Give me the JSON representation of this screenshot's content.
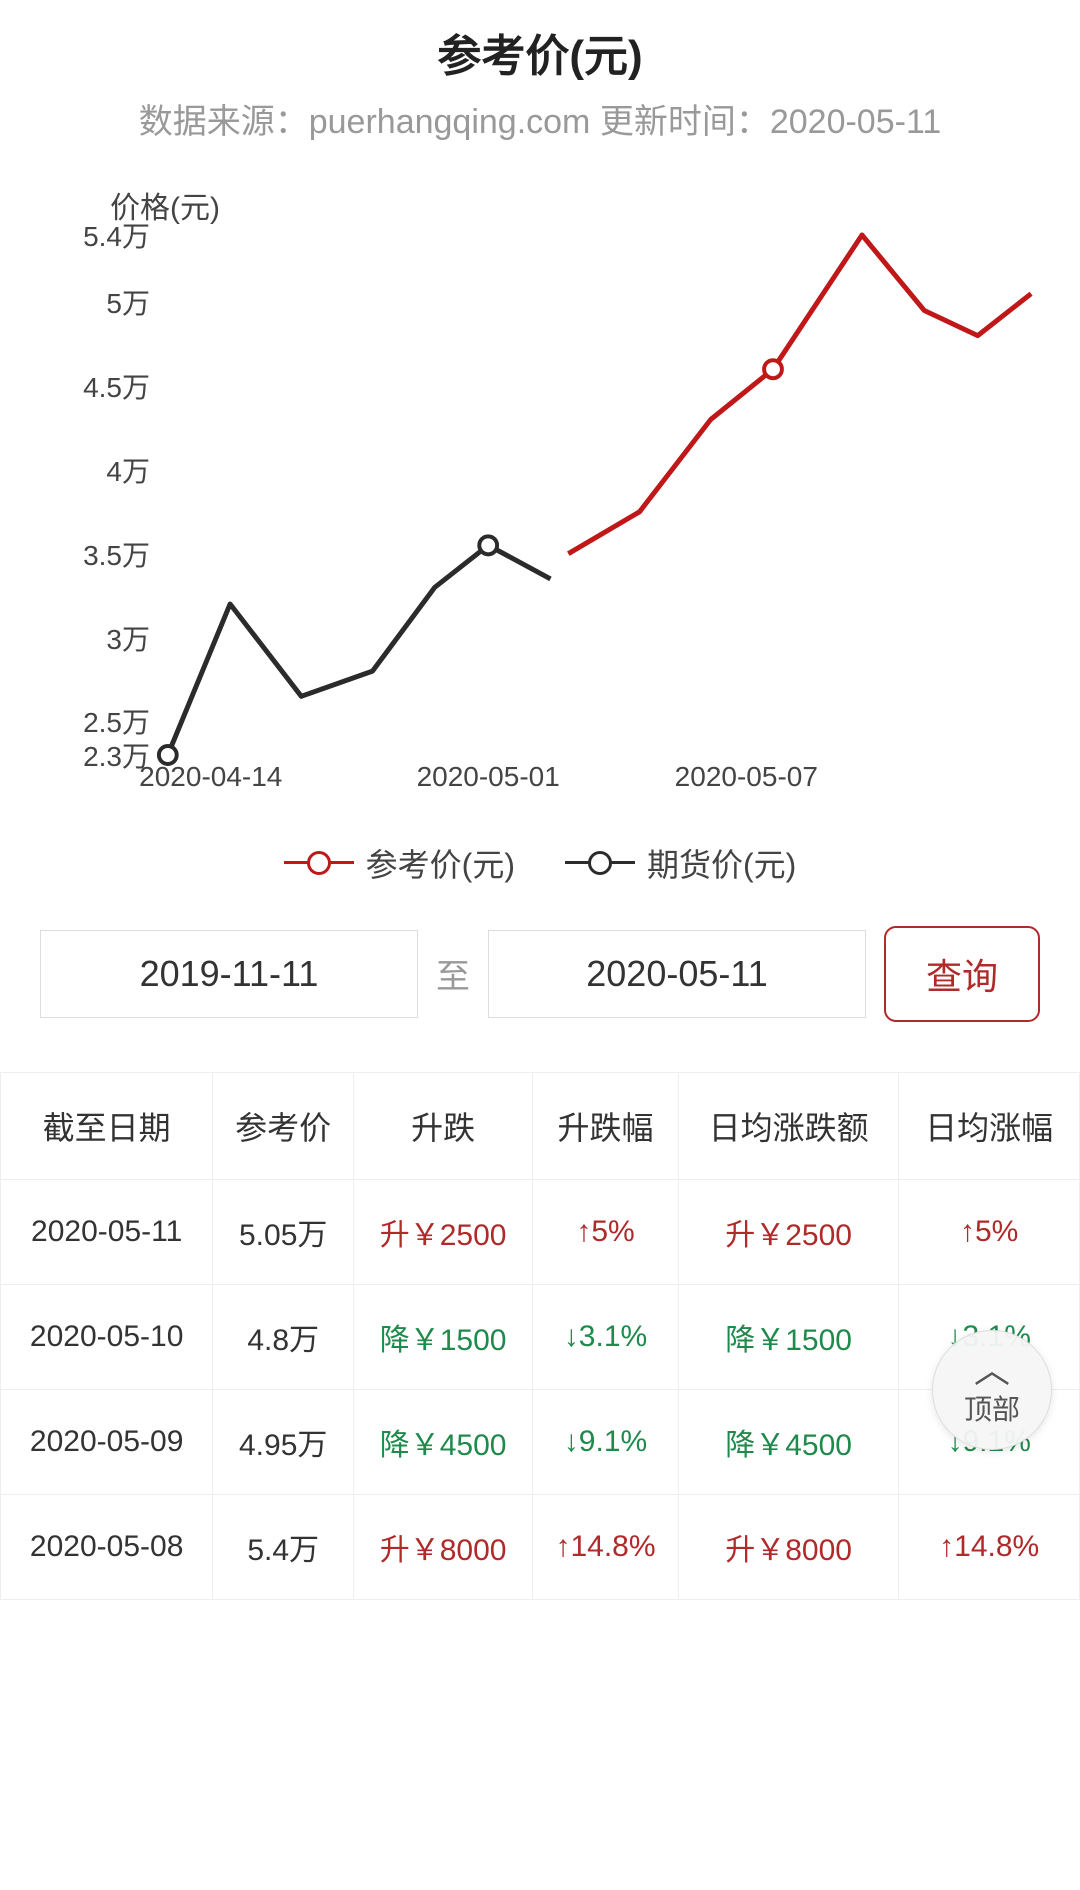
{
  "header": {
    "title": "参考价(元)",
    "source_prefix": "数据来源：",
    "source": "puerhangqing.com",
    "update_prefix": " 更新时间：",
    "update_date": "2020-05-11"
  },
  "chart": {
    "type": "line",
    "y_label": "价格(元)",
    "y_min": 2.3,
    "y_max": 5.4,
    "y_ticks": [
      {
        "v": 5.4,
        "label": "5.4万"
      },
      {
        "v": 5.0,
        "label": "5万"
      },
      {
        "v": 4.5,
        "label": "4.5万"
      },
      {
        "v": 4.0,
        "label": "4万"
      },
      {
        "v": 3.5,
        "label": "3.5万"
      },
      {
        "v": 3.0,
        "label": "3万"
      },
      {
        "v": 2.5,
        "label": "2.5万"
      },
      {
        "v": 2.3,
        "label": "2.3万"
      }
    ],
    "x_ticks": [
      {
        "px": 0.02,
        "label": "2020-04-14"
      },
      {
        "px": 0.38,
        "label": "2020-05-01"
      },
      {
        "px": 0.67,
        "label": "2020-05-07"
      }
    ],
    "series": [
      {
        "name": "期货价(元)",
        "color": "#2b2b2b",
        "points": [
          {
            "x": 0.02,
            "y": 2.3
          },
          {
            "x": 0.09,
            "y": 3.2
          },
          {
            "x": 0.17,
            "y": 2.65
          },
          {
            "x": 0.25,
            "y": 2.8
          },
          {
            "x": 0.32,
            "y": 3.3
          },
          {
            "x": 0.38,
            "y": 3.55
          },
          {
            "x": 0.45,
            "y": 3.35
          }
        ],
        "markers_at": [
          0,
          5
        ]
      },
      {
        "name": "参考价(元)",
        "color": "#c01818",
        "points": [
          {
            "x": 0.47,
            "y": 3.5
          },
          {
            "x": 0.55,
            "y": 3.75
          },
          {
            "x": 0.63,
            "y": 4.3
          },
          {
            "x": 0.7,
            "y": 4.6
          },
          {
            "x": 0.8,
            "y": 5.4
          },
          {
            "x": 0.87,
            "y": 4.95
          },
          {
            "x": 0.93,
            "y": 4.8
          },
          {
            "x": 0.99,
            "y": 5.05
          }
        ],
        "markers_at": [
          3
        ]
      }
    ],
    "legend": [
      {
        "label": "参考价(元)",
        "color": "#c01818"
      },
      {
        "label": "期货价(元)",
        "color": "#2b2b2b"
      }
    ],
    "line_width": 5,
    "marker_radius": 9,
    "background": "#ffffff",
    "axis_fontsize": 28
  },
  "filter": {
    "from": "2019-11-11",
    "to_label": "至",
    "to": "2020-05-11",
    "query_label": "查询"
  },
  "table": {
    "columns": [
      "截至日期",
      "参考价",
      "升跌",
      "升跌幅",
      "日均涨跌额",
      "日均涨幅"
    ],
    "rows": [
      {
        "date": "2020-05-11",
        "price": "5.05万",
        "chg": "升￥2500",
        "chg_pct": "↑5%",
        "avg_chg": "升￥2500",
        "avg_pct": "↑5%",
        "dir": "up"
      },
      {
        "date": "2020-05-10",
        "price": "4.8万",
        "chg": "降￥1500",
        "chg_pct": "↓3.1%",
        "avg_chg": "降￥1500",
        "avg_pct": "↓3.1%",
        "dir": "down"
      },
      {
        "date": "2020-05-09",
        "price": "4.95万",
        "chg": "降￥4500",
        "chg_pct": "↓9.1%",
        "avg_chg": "降￥4500",
        "avg_pct": "↓9.1%",
        "dir": "down"
      },
      {
        "date": "2020-05-08",
        "price": "5.4万",
        "chg": "升￥8000",
        "chg_pct": "↑14.8%",
        "avg_chg": "升￥8000",
        "avg_pct": "↑14.8%",
        "dir": "up"
      }
    ]
  },
  "fab": {
    "label": "顶部"
  },
  "colors": {
    "up": "#b02a2a",
    "down": "#1f8a4c",
    "border": "#eeeeee"
  }
}
